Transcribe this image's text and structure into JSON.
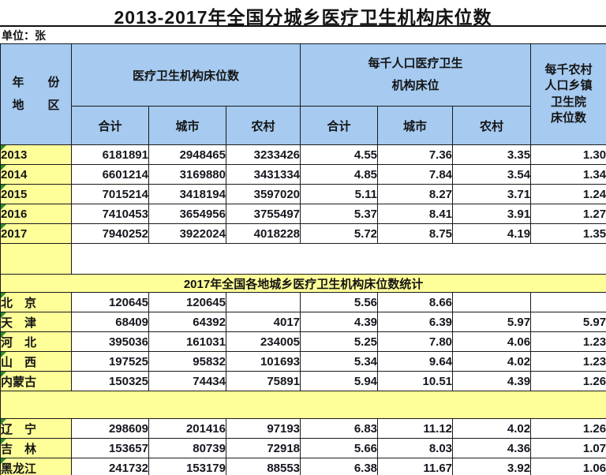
{
  "page": {
    "title": "2013-2017年全国分城乡医疗卫生机构床位数",
    "unit_label": "单位：张"
  },
  "colors": {
    "header_blue": "#A6CAF0",
    "highlight_yellow": "#FFFF99",
    "flag_green": "#2E8B2E",
    "border_black": "#1A1A1A"
  },
  "table": {
    "header": {
      "corner_line1": "年　　份",
      "corner_line2": "地　　区",
      "group_abs": "医疗卫生机构床位数",
      "group_per1000_line1": "每千人口医疗卫生",
      "group_per1000_line2": "机构床位",
      "sub_labels": [
        "合计",
        "城市",
        "农村",
        "合计",
        "城市",
        "农村"
      ],
      "last_col_lines": [
        "每千农村",
        "人口乡镇",
        "卫生院",
        "床位数"
      ]
    },
    "banner": "2017年全国各地城乡医疗卫生机构床位数统计",
    "sections": {
      "years": [
        {
          "label": "2013",
          "values": [
            "6181891",
            "2948465",
            "3233426",
            "4.55",
            "7.36",
            "3.35",
            "1.30"
          ]
        },
        {
          "label": "2014",
          "values": [
            "6601214",
            "3169880",
            "3431334",
            "4.85",
            "7.84",
            "3.54",
            "1.34"
          ]
        },
        {
          "label": "2015",
          "values": [
            "7015214",
            "3418194",
            "3597020",
            "5.11",
            "8.27",
            "3.71",
            "1.24"
          ]
        },
        {
          "label": "2016",
          "values": [
            "7410453",
            "3654956",
            "3755497",
            "5.37",
            "8.41",
            "3.91",
            "1.27"
          ]
        },
        {
          "label": "2017",
          "values": [
            "7940252",
            "3922024",
            "4018228",
            "5.72",
            "8.75",
            "4.19",
            "1.35"
          ]
        }
      ],
      "provinces_north": [
        {
          "label": "北　京",
          "values": [
            "120645",
            "120645",
            "",
            "5.56",
            "8.66",
            "",
            ""
          ]
        },
        {
          "label": "天　津",
          "values": [
            "68409",
            "64392",
            "4017",
            "4.39",
            "6.39",
            "5.97",
            "5.97"
          ]
        },
        {
          "label": "河　北",
          "values": [
            "395036",
            "161031",
            "234005",
            "5.25",
            "7.80",
            "4.06",
            "1.23"
          ]
        },
        {
          "label": "山　西",
          "values": [
            "197525",
            "95832",
            "101693",
            "5.34",
            "9.64",
            "4.02",
            "1.23"
          ]
        },
        {
          "label": "内蒙古",
          "values": [
            "150325",
            "74434",
            "75891",
            "5.94",
            "10.51",
            "4.39",
            "1.26"
          ]
        }
      ],
      "provinces_northeast": [
        {
          "label": "辽　宁",
          "values": [
            "298609",
            "201416",
            "97193",
            "6.83",
            "11.12",
            "4.02",
            "1.26"
          ]
        },
        {
          "label": "吉　林",
          "values": [
            "153657",
            "80739",
            "72918",
            "5.66",
            "8.03",
            "4.36",
            "1.07"
          ]
        },
        {
          "label": "黑龙江",
          "values": [
            "241732",
            "153179",
            "88553",
            "6.38",
            "11.67",
            "3.92",
            "1.06"
          ]
        }
      ]
    }
  }
}
